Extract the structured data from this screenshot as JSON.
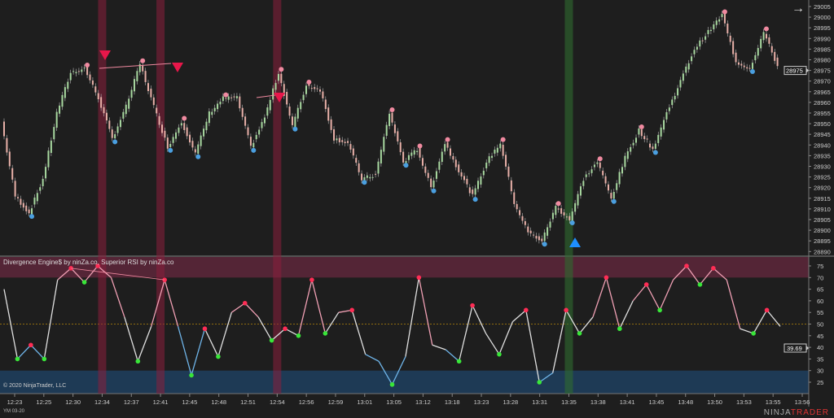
{
  "indicator_label": "Divergence Engine$ by ninZa.co, Superior RSI by ninZa.co",
  "copyright": "© 2020 NinjaTrader, LLC",
  "instrument": "YM 03-20",
  "brand": {
    "part1": "NINJA",
    "part2": "TRADER"
  },
  "scroll_arrow": "→",
  "colors": {
    "background": "#1e1e1e",
    "bearish_band": "#8a1f3c",
    "bullish_band": "#2f6b2f",
    "swing_high": "#f08aa0",
    "swing_low": "#4a9fe0",
    "rsi_high_dot": "#ff2d55",
    "rsi_low_dot": "#39e639",
    "bear_signal": "#e8174a",
    "bull_signal": "#1e8fff"
  },
  "chart_data": [
    {
      "type": "line",
      "name_hidden": "",
      "ylim": [
        28888,
        29007
      ],
      "y_ticks": [
        29005,
        29000,
        28995,
        28990,
        28985,
        28980,
        28975,
        28970,
        28965,
        28960,
        28955,
        28950,
        28945,
        28940,
        28935,
        28930,
        28925,
        28920,
        28915,
        28910,
        28905,
        28900,
        28895,
        28890
      ],
      "current_price": "28975",
      "values": [
        28951,
        28916,
        28908,
        28924,
        28955,
        28974,
        28976,
        28962,
        28943,
        28958,
        28978,
        28958,
        28939,
        28951,
        28936,
        28955,
        28962,
        28962,
        28939,
        28953,
        28974,
        28949,
        28968,
        28966,
        28943,
        28941,
        28924,
        28926,
        28955,
        28932,
        28938,
        28920,
        28941,
        28928,
        28916,
        28932,
        28941,
        28913,
        28899,
        28895,
        28911,
        28905,
        28924,
        28932,
        28915,
        28934,
        28947,
        28938,
        28955,
        28970,
        28985,
        28993,
        29001,
        28979,
        28976,
        28993,
        28977
      ]
    },
    {
      "type": "line",
      "ylim": [
        20,
        79
      ],
      "y_ticks": [
        75,
        70,
        65,
        60,
        55,
        50,
        45,
        40,
        35,
        30,
        25
      ],
      "overbought": 70,
      "oversold": 30,
      "midline": 50,
      "current_value": "39.69",
      "values": [
        65,
        35,
        41,
        35,
        69,
        74,
        68,
        75,
        70,
        53,
        34,
        49,
        69,
        49,
        28,
        48,
        36,
        55,
        59,
        53,
        43,
        48,
        45,
        69,
        46,
        55,
        56,
        37,
        34,
        24,
        36,
        70,
        41,
        39,
        34,
        58,
        46,
        37,
        51,
        56,
        25,
        29,
        56,
        46,
        53,
        70,
        48,
        60,
        67,
        56,
        69,
        75,
        67,
        74,
        69,
        48,
        46,
        56,
        49
      ]
    }
  ],
  "x_ticks": [
    "12:23",
    "12:25",
    "12:30",
    "12:34",
    "12:37",
    "12:41",
    "12:45",
    "12:48",
    "12:51",
    "12:54",
    "12:56",
    "12:59",
    "13:01",
    "13:05",
    "13:12",
    "13:18",
    "13:23",
    "13:28",
    "13:31",
    "13:35",
    "13:38",
    "13:41",
    "13:45",
    "13:48",
    "13:50",
    "13:53",
    "13:55",
    "13:56"
  ],
  "signal_bands": {
    "bearish_times": [
      "12:34",
      "12:41",
      "12:54"
    ],
    "bullish_times": [
      "13:35"
    ]
  }
}
